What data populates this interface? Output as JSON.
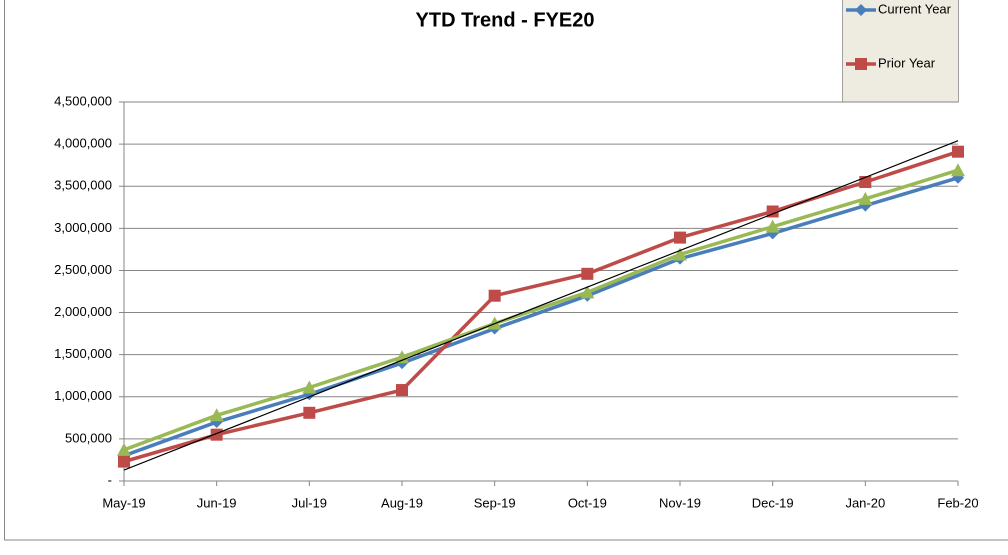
{
  "chart_data": {
    "type": "line",
    "title": "YTD Trend - FYE20",
    "categories": [
      "May-19",
      "Jun-19",
      "Jul-19",
      "Aug-19",
      "Sep-19",
      "Oct-19",
      "Nov-19",
      "Dec-19",
      "Jan-20",
      "Feb-20"
    ],
    "series": [
      {
        "name": "Current Year",
        "color": "#4a7ebb",
        "marker": "diamond",
        "values": [
          300000,
          700000,
          1030000,
          1400000,
          1810000,
          2200000,
          2640000,
          2940000,
          3270000,
          3600000
        ]
      },
      {
        "name": "Prior Year",
        "color": "#be4b48",
        "marker": "square",
        "values": [
          230000,
          550000,
          810000,
          1080000,
          2200000,
          2460000,
          2890000,
          3200000,
          3550000,
          3910000
        ]
      },
      {
        "color": "#98b954",
        "marker": "triangle",
        "values": [
          370000,
          780000,
          1110000,
          1470000,
          1870000,
          2240000,
          2690000,
          3020000,
          3350000,
          3690000
        ]
      }
    ],
    "trendline": {
      "color": "#000000",
      "values": [
        130000,
        4040000
      ]
    },
    "ylim": [
      0,
      4500000
    ],
    "yticks": [
      {
        "value": 0,
        "label": "-"
      },
      {
        "value": 500000,
        "label": "500,000"
      },
      {
        "value": 1000000,
        "label": "1,000,000"
      },
      {
        "value": 1500000,
        "label": "1,500,000"
      },
      {
        "value": 2000000,
        "label": "2,000,000"
      },
      {
        "value": 2500000,
        "label": "2,500,000"
      },
      {
        "value": 3000000,
        "label": "3,000,000"
      },
      {
        "value": 3500000,
        "label": "3,500,000"
      },
      {
        "value": 4000000,
        "label": "4,000,000"
      },
      {
        "value": 4500000,
        "label": "4,500,000"
      }
    ],
    "grid": true,
    "legend": "top-right"
  }
}
